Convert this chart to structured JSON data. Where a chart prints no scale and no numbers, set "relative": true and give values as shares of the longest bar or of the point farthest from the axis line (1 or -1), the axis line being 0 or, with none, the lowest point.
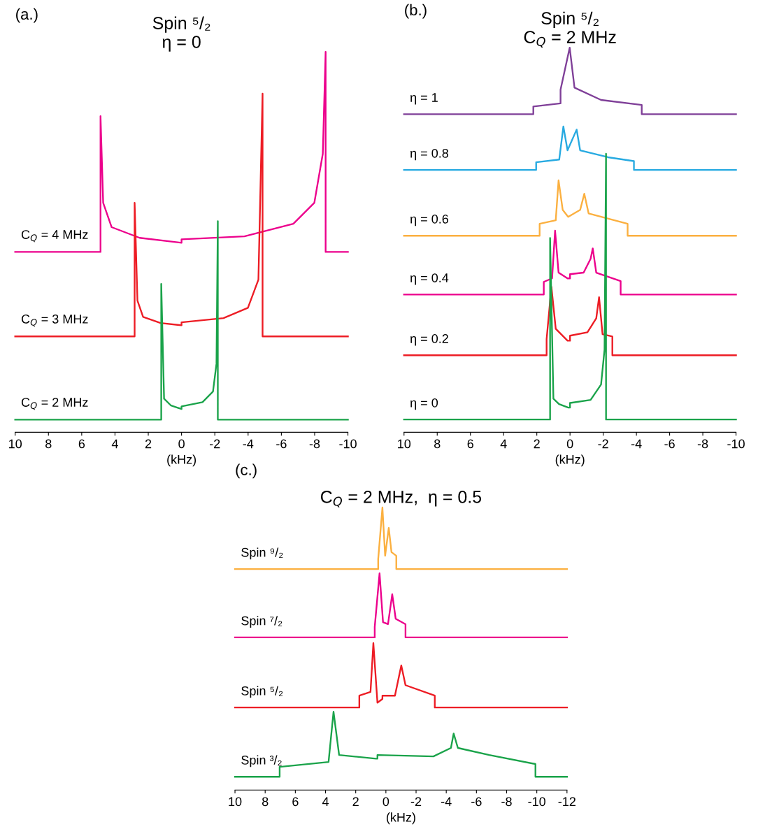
{
  "chart_data": [
    {
      "type": "line",
      "relative": true,
      "title": "Spin ⁵/₂\nη = 0",
      "xlabel": "(kHz)",
      "annotations": [
        "(a.)"
      ],
      "xlim": [
        10,
        -10
      ],
      "xticks": [
        10,
        8,
        6,
        4,
        2,
        0,
        -2,
        -4,
        -6,
        -8,
        -10
      ],
      "tick_labels": "x",
      "series": [
        {
          "name": "C$_{Q}$ = 4 MHz",
          "color": "#ec008c",
          "x": [
            10,
            4.87,
            4.87,
            4.71,
            4.2,
            2.52,
            0,
            0,
            -3.78,
            -6.72,
            -7.98,
            -8.49,
            -8.66,
            -8.66,
            -10
          ],
          "values": [
            0.474,
            0.474,
            0.831,
            0.603,
            0.539,
            0.511,
            0.498,
            0.507,
            0.515,
            0.548,
            0.603,
            0.732,
            1.0,
            0.474,
            0.474
          ]
        },
        {
          "name": "C$_{Q}$ = 3 MHz",
          "color": "#ed1c24",
          "x": [
            10,
            2.82,
            2.82,
            2.65,
            2.31,
            1.26,
            0,
            0,
            -2.52,
            -3.99,
            -4.62,
            -4.87,
            -4.87,
            -10
          ],
          "values": [
            0.252,
            0.252,
            0.603,
            0.346,
            0.303,
            0.287,
            0.281,
            0.289,
            0.3,
            0.327,
            0.401,
            0.89,
            0.252,
            0.252
          ]
        },
        {
          "name": "C$_{Q}$ = 2 MHz",
          "color": "#1aa34a",
          "x": [
            10,
            1.22,
            1.22,
            1.05,
            0.63,
            0,
            0,
            -1.26,
            -1.89,
            -2.1,
            -2.18,
            -2.18,
            -10
          ],
          "values": [
            0.033,
            0.033,
            0.39,
            0.088,
            0.07,
            0.061,
            0.068,
            0.079,
            0.107,
            0.18,
            0.555,
            0.033,
            0.033
          ]
        }
      ]
    },
    {
      "type": "line",
      "relative": true,
      "title": "Spin ⁵/₂\nC$_{Q}$ = 2 MHz",
      "xlabel": "(kHz)",
      "annotations": [
        "(b.)"
      ],
      "xlim": [
        10,
        -10
      ],
      "xticks": [
        10,
        8,
        6,
        4,
        2,
        0,
        -2,
        -4,
        -6,
        -8,
        -10
      ],
      "tick_labels": "x",
      "series": [
        {
          "name": "η = 1",
          "color": "#7f3f98",
          "x": [
            10,
            2.21,
            2.21,
            0.57,
            0.57,
            0.02,
            -0.27,
            -1.87,
            -4.32,
            -4.32,
            -10
          ],
          "values": [
            0.827,
            0.827,
            0.847,
            0.855,
            0.891,
            1.0,
            0.896,
            0.864,
            0.851,
            0.827,
            0.827
          ]
        },
        {
          "name": "η = 0.8",
          "color": "#27aae1",
          "x": [
            10,
            2.04,
            2.04,
            0.65,
            0.4,
            0.15,
            -0.4,
            -0.61,
            -2.29,
            -3.85,
            -3.85,
            -10
          ],
          "values": [
            0.682,
            0.682,
            0.702,
            0.709,
            0.795,
            0.733,
            0.787,
            0.733,
            0.715,
            0.705,
            0.682,
            0.682
          ]
        },
        {
          "name": "η = 0.6",
          "color": "#fbb040",
          "x": [
            10,
            1.83,
            1.83,
            0.86,
            0.69,
            0.44,
            0.11,
            -0.61,
            -0.86,
            -1.12,
            -3.47,
            -3.47,
            -10
          ],
          "values": [
            0.511,
            0.511,
            0.542,
            0.551,
            0.655,
            0.578,
            0.56,
            0.578,
            0.62,
            0.569,
            0.542,
            0.511,
            0.511
          ]
        },
        {
          "name": "η = 0.4",
          "color": "#ec008c",
          "x": [
            10,
            1.58,
            1.58,
            1.08,
            0.9,
            0.69,
            0.15,
            0,
            0,
            -0.82,
            -1.24,
            -1.37,
            -1.58,
            -3.05,
            -3.05,
            -10
          ],
          "values": [
            0.358,
            0.358,
            0.391,
            0.4,
            0.524,
            0.415,
            0.4,
            0.4,
            0.411,
            0.415,
            0.451,
            0.478,
            0.415,
            0.393,
            0.358,
            0.358
          ]
        },
        {
          "name": "η = 0.2",
          "color": "#ed1c24",
          "x": [
            10,
            1.41,
            1.41,
            1.12,
            0.86,
            0.15,
            0,
            0,
            -1.05,
            -1.58,
            -1.75,
            -1.96,
            -2.55,
            -2.55,
            -10
          ],
          "values": [
            0.2,
            0.2,
            0.242,
            0.378,
            0.269,
            0.238,
            0.238,
            0.251,
            0.26,
            0.296,
            0.351,
            0.255,
            0.249,
            0.2,
            0.2
          ]
        },
        {
          "name": "η = 0",
          "color": "#1aa34a",
          "x": [
            10,
            1.2,
            1.2,
            1.0,
            0.66,
            0.1,
            0,
            0,
            -1.24,
            -1.87,
            -2.08,
            -2.17,
            -2.17,
            -10
          ],
          "values": [
            0.033,
            0.033,
            0.505,
            0.087,
            0.073,
            0.064,
            0.064,
            0.076,
            0.084,
            0.124,
            0.215,
            0.724,
            0.033,
            0.033
          ]
        }
      ]
    },
    {
      "type": "line",
      "relative": true,
      "title": "C$_{Q}$ = 2 MHz,  η = 0.5",
      "xlabel": "(kHz)",
      "annotations": [
        "(c.)"
      ],
      "xlim": [
        10,
        -12
      ],
      "xticks": [
        10,
        8,
        6,
        4,
        2,
        0,
        -2,
        -4,
        -6,
        -8,
        -10,
        -12
      ],
      "tick_labels": "x",
      "series": [
        {
          "name": "Spin ⁹/₂",
          "color": "#fbb040",
          "x": [
            10,
            0.51,
            0.51,
            0.23,
            0.05,
            -0.19,
            -0.37,
            -0.69,
            -0.69,
            -12
          ],
          "values": [
            0.782,
            0.782,
            0.817,
            1.0,
            0.829,
            0.928,
            0.842,
            0.829,
            0.782,
            0.782
          ]
        },
        {
          "name": "Spin ⁷/₂",
          "color": "#ec008c",
          "x": [
            10,
            0.74,
            0.74,
            0.42,
            0.19,
            -0.14,
            -0.42,
            -0.65,
            -1.3,
            -1.3,
            -12
          ],
          "values": [
            0.54,
            0.54,
            0.577,
            0.767,
            0.594,
            0.587,
            0.693,
            0.606,
            0.587,
            0.54,
            0.54
          ]
        },
        {
          "name": "Spin ⁵/₂",
          "color": "#ed1c24",
          "x": [
            10,
            1.76,
            1.76,
            1.02,
            0.83,
            0.56,
            0.23,
            0.23,
            -0.6,
            -1.02,
            -1.3,
            -3.24,
            -3.24,
            -12
          ],
          "values": [
            0.292,
            0.292,
            0.334,
            0.347,
            0.52,
            0.309,
            0.322,
            0.334,
            0.334,
            0.441,
            0.371,
            0.334,
            0.292,
            0.292
          ]
        },
        {
          "name": "Spin ³/₂",
          "color": "#1aa34a",
          "x": [
            10,
            7.04,
            7.04,
            3.8,
            3.47,
            3.1,
            0.65,
            0.56,
            0.56,
            -3.15,
            -4.31,
            -4.49,
            -4.77,
            -6.85,
            -9.91,
            -9.91,
            -12
          ],
          "values": [
            0.047,
            0.047,
            0.082,
            0.099,
            0.277,
            0.124,
            0.111,
            0.111,
            0.124,
            0.119,
            0.149,
            0.2,
            0.149,
            0.124,
            0.092,
            0.047,
            0.047
          ]
        }
      ]
    }
  ]
}
